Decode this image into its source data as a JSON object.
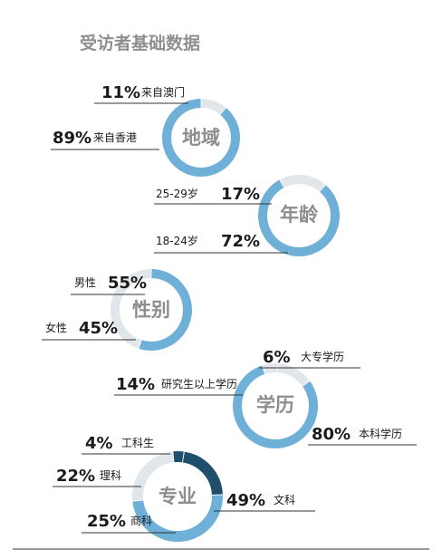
{
  "title": "受访者基础数据",
  "colors": {
    "ring_primary": "#6fb0d8",
    "ring_secondary": "#e1e6ea",
    "ring_accent": "#1f4f6b",
    "title": "#8f8f8f",
    "center_label": "#8d8d8d",
    "text": "#1a1a1a"
  },
  "chart_data": [
    {
      "type": "pie",
      "style": "donut",
      "center_label": "地域",
      "slices": [
        {
          "pct": "11%",
          "label": "来自澳门",
          "value": 11
        },
        {
          "pct": "89%",
          "label": "来自香港",
          "value": 89
        }
      ]
    },
    {
      "type": "pie",
      "style": "donut",
      "center_label": "年龄",
      "slices": [
        {
          "pct": "17%",
          "label": "25-29岁",
          "value": 17
        },
        {
          "pct": "72%",
          "label": "18-24岁",
          "value": 72
        }
      ]
    },
    {
      "type": "pie",
      "style": "donut",
      "center_label": "性别",
      "slices": [
        {
          "pct": "55%",
          "label": "男性",
          "value": 55
        },
        {
          "pct": "45%",
          "label": "女性",
          "value": 45
        }
      ]
    },
    {
      "type": "pie",
      "style": "donut",
      "center_label": "学历",
      "slices": [
        {
          "pct": "6%",
          "label": "大专学历",
          "value": 6
        },
        {
          "pct": "14%",
          "label": "研究生以上学历",
          "value": 14
        },
        {
          "pct": "80%",
          "label": "本科学历",
          "value": 80
        }
      ]
    },
    {
      "type": "pie",
      "style": "donut",
      "center_label": "专业",
      "slices": [
        {
          "pct": "4%",
          "label": "工科生",
          "value": 4
        },
        {
          "pct": "22%",
          "label": "理科",
          "value": 22
        },
        {
          "pct": "49%",
          "label": "文科",
          "value": 49
        },
        {
          "pct": "25%",
          "label": "商科",
          "value": 25
        }
      ]
    }
  ]
}
